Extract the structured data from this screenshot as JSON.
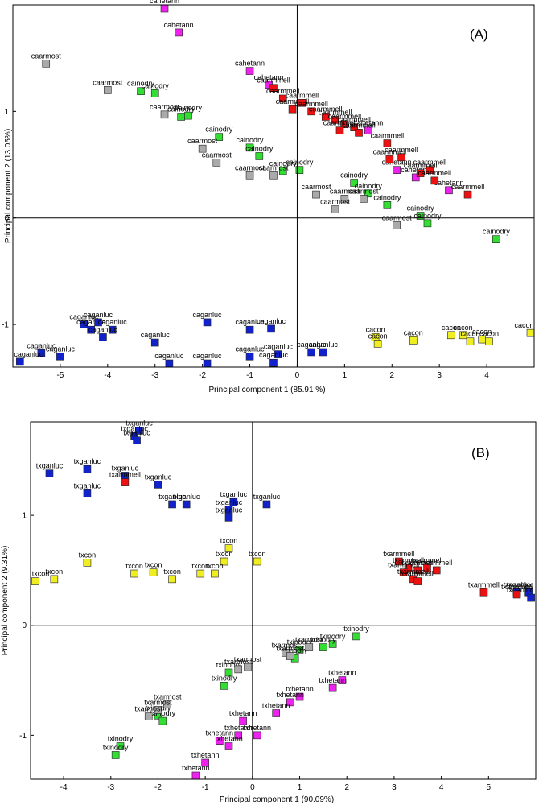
{
  "chart_data": [
    {
      "type": "scatter",
      "panel_label": "(A)",
      "xlabel": "Principal component 1 (85.91 %)",
      "ylabel": "Principal component 2 (13.05%)",
      "xlim": [
        -6,
        5
      ],
      "ylim": [
        -1.4,
        2
      ],
      "xticks": [
        -5,
        -4,
        -3,
        -2,
        -1,
        0,
        1,
        2,
        3,
        4
      ],
      "yticks": [
        -1,
        0,
        1
      ],
      "series": [
        {
          "name": "cahetann",
          "color": "#ee22ee",
          "points": [
            {
              "x": -2.8,
              "y": 1.97,
              "label": "cahetann"
            },
            {
              "x": -2.5,
              "y": 1.74,
              "label": "cahetann"
            },
            {
              "x": -1.0,
              "y": 1.38,
              "label": "cahetann"
            },
            {
              "x": -0.6,
              "y": 1.25,
              "label": "cahetann"
            },
            {
              "x": 1.5,
              "y": 0.82,
              "label": "cahetann"
            },
            {
              "x": 2.1,
              "y": 0.45,
              "label": "cahetann"
            },
            {
              "x": 2.5,
              "y": 0.38,
              "label": "cahetann"
            },
            {
              "x": 3.2,
              "y": 0.26,
              "label": "cahetann"
            }
          ]
        },
        {
          "name": "caarmmell",
          "color": "#ee1111",
          "points": [
            {
              "x": -0.5,
              "y": 1.22,
              "label": "caarmmell"
            },
            {
              "x": -0.3,
              "y": 1.12,
              "label": "caarmmell"
            },
            {
              "x": -0.1,
              "y": 1.02,
              "label": "caarmmell"
            },
            {
              "x": 0.1,
              "y": 1.08,
              "label": "caarmmell"
            },
            {
              "x": 0.3,
              "y": 1.0,
              "label": "caarmmell"
            },
            {
              "x": 0.6,
              "y": 0.95,
              "label": "caarmmell"
            },
            {
              "x": 0.8,
              "y": 0.92,
              "label": "caarmmell"
            },
            {
              "x": 1.0,
              "y": 0.88,
              "label": "caarmmell"
            },
            {
              "x": 1.2,
              "y": 0.85,
              "label": "caarmmell"
            },
            {
              "x": 0.9,
              "y": 0.82,
              "label": "caarmmell"
            },
            {
              "x": 1.3,
              "y": 0.8,
              "label": "caarmmell"
            },
            {
              "x": 1.9,
              "y": 0.7,
              "label": "caarmmell"
            },
            {
              "x": 2.2,
              "y": 0.57,
              "label": "caarmmell"
            },
            {
              "x": 1.95,
              "y": 0.55,
              "label": "caarmmell"
            },
            {
              "x": 2.8,
              "y": 0.45,
              "label": "caarmmell"
            },
            {
              "x": 2.6,
              "y": 0.42,
              "label": "caarmmell"
            },
            {
              "x": 2.9,
              "y": 0.35,
              "label": "caarmmell"
            },
            {
              "x": 3.6,
              "y": 0.22,
              "label": "caarmmell"
            }
          ]
        },
        {
          "name": "cainodry",
          "color": "#33dd33",
          "points": [
            {
              "x": -3.3,
              "y": 1.19,
              "label": "cainodry"
            },
            {
              "x": -3.0,
              "y": 1.17,
              "label": "cainodry"
            },
            {
              "x": -2.45,
              "y": 0.95,
              "label": "cainodry"
            },
            {
              "x": -2.3,
              "y": 0.96,
              "label": "cainodry"
            },
            {
              "x": -1.65,
              "y": 0.76,
              "label": "cainodry"
            },
            {
              "x": -1.0,
              "y": 0.66,
              "label": "cainodry"
            },
            {
              "x": -0.8,
              "y": 0.58,
              "label": "cainodry"
            },
            {
              "x": -0.3,
              "y": 0.44,
              "label": "cainodry"
            },
            {
              "x": 0.05,
              "y": 0.45,
              "label": "cainodry"
            },
            {
              "x": 1.2,
              "y": 0.33,
              "label": "cainodry"
            },
            {
              "x": 1.5,
              "y": 0.23,
              "label": "cainodry"
            },
            {
              "x": 1.9,
              "y": 0.12,
              "label": "cainodry"
            },
            {
              "x": 2.6,
              "y": 0.02,
              "label": "cainodry"
            },
            {
              "x": 2.75,
              "y": -0.05,
              "label": "cainodry"
            },
            {
              "x": 4.2,
              "y": -0.2,
              "label": "cainodry"
            }
          ]
        },
        {
          "name": "caarmost",
          "color": "#aaaaaa",
          "points": [
            {
              "x": -5.3,
              "y": 1.45,
              "label": "caarmost"
            },
            {
              "x": -4.0,
              "y": 1.2,
              "label": "caarmost"
            },
            {
              "x": -2.8,
              "y": 0.97,
              "label": "caarmost"
            },
            {
              "x": -2.0,
              "y": 0.65,
              "label": "caarmost"
            },
            {
              "x": -1.7,
              "y": 0.52,
              "label": "caarmost"
            },
            {
              "x": -1.0,
              "y": 0.4,
              "label": "caarmost"
            },
            {
              "x": -0.5,
              "y": 0.4,
              "label": "caarmost"
            },
            {
              "x": 0.4,
              "y": 0.22,
              "label": "caarmost"
            },
            {
              "x": 1.0,
              "y": 0.18,
              "label": "caarmost"
            },
            {
              "x": 1.4,
              "y": 0.18,
              "label": "caarmost"
            },
            {
              "x": 0.8,
              "y": 0.08,
              "label": "caarmost"
            },
            {
              "x": 2.1,
              "y": -0.07,
              "label": "caarmost"
            }
          ]
        },
        {
          "name": "caganluc",
          "color": "#1122cc",
          "points": [
            {
              "x": -4.5,
              "y": -1.0,
              "label": "caganluc"
            },
            {
              "x": -4.35,
              "y": -1.05,
              "label": "caganluc"
            },
            {
              "x": -4.2,
              "y": -0.98,
              "label": "caganluc"
            },
            {
              "x": -3.9,
              "y": -1.05,
              "label": "caganluc"
            },
            {
              "x": -4.1,
              "y": -1.12,
              "label": "caganluc"
            },
            {
              "x": -3.0,
              "y": -1.17,
              "label": "caganluc"
            },
            {
              "x": -1.9,
              "y": -0.98,
              "label": "caganluc"
            },
            {
              "x": -1.0,
              "y": -1.05,
              "label": "caganluc"
            },
            {
              "x": -0.55,
              "y": -1.04,
              "label": "caganluc"
            },
            {
              "x": -5.4,
              "y": -1.27,
              "label": "caganluc"
            },
            {
              "x": -5.0,
              "y": -1.3,
              "label": "caganluc"
            },
            {
              "x": -5.85,
              "y": -1.35,
              "label": "caganluc"
            },
            {
              "x": -2.7,
              "y": -1.37,
              "label": "caganluc"
            },
            {
              "x": -1.9,
              "y": -1.38,
              "label": "caganluc"
            },
            {
              "x": -1.0,
              "y": -1.3,
              "label": "caganluc"
            },
            {
              "x": -0.4,
              "y": -1.28,
              "label": "caganluc"
            },
            {
              "x": -0.5,
              "y": -1.36,
              "label": "caganluc"
            },
            {
              "x": 0.3,
              "y": -1.26,
              "label": "caganluc"
            },
            {
              "x": 0.55,
              "y": -1.26,
              "label": "caganluc"
            }
          ]
        },
        {
          "name": "cacon",
          "color": "#eeee22",
          "points": [
            {
              "x": 1.65,
              "y": -1.12,
              "label": "cacon"
            },
            {
              "x": 1.7,
              "y": -1.18,
              "label": "cacon"
            },
            {
              "x": 2.45,
              "y": -1.15,
              "label": "cacon"
            },
            {
              "x": 3.25,
              "y": -1.1,
              "label": "cacon"
            },
            {
              "x": 3.5,
              "y": -1.1,
              "label": "cacon"
            },
            {
              "x": 3.65,
              "y": -1.16,
              "label": "cacon"
            },
            {
              "x": 3.9,
              "y": -1.14,
              "label": "cacon"
            },
            {
              "x": 4.05,
              "y": -1.16,
              "label": "cacon"
            },
            {
              "x": 5.0,
              "y": -1.08,
              "label": "cacon"
            }
          ]
        }
      ]
    },
    {
      "type": "scatter",
      "panel_label": "(B)",
      "xlabel": "Principal component 1 (90.09%)",
      "ylabel": "Principal component 2 (9.31%)",
      "xlim": [
        -4.7,
        6
      ],
      "ylim": [
        -1.4,
        1.85
      ],
      "xticks": [
        -4,
        -3,
        -2,
        -1,
        0,
        1,
        2,
        3,
        4,
        5
      ],
      "yticks": [
        -1,
        0,
        1
      ],
      "series": [
        {
          "name": "txganluc",
          "color": "#1122cc",
          "points": [
            {
              "x": -2.4,
              "y": 1.77,
              "label": "txganluc"
            },
            {
              "x": -2.5,
              "y": 1.72,
              "label": "txganluc"
            },
            {
              "x": -2.45,
              "y": 1.68,
              "label": "txganluc"
            },
            {
              "x": -4.3,
              "y": 1.38,
              "label": "txganluc"
            },
            {
              "x": -3.5,
              "y": 1.42,
              "label": "txganluc"
            },
            {
              "x": -2.7,
              "y": 1.36,
              "label": "txganluc"
            },
            {
              "x": -2.0,
              "y": 1.28,
              "label": "txganluc"
            },
            {
              "x": -3.5,
              "y": 1.2,
              "label": "txganluc"
            },
            {
              "x": -1.7,
              "y": 1.1,
              "label": "txganluc"
            },
            {
              "x": -1.4,
              "y": 1.1,
              "label": "txganluc"
            },
            {
              "x": -0.4,
              "y": 1.12,
              "label": "txganluc"
            },
            {
              "x": -0.5,
              "y": 1.05,
              "label": "txganluc"
            },
            {
              "x": -0.5,
              "y": 0.98,
              "label": "txganluc"
            },
            {
              "x": 0.3,
              "y": 1.1,
              "label": "txganluc"
            },
            {
              "x": 5.85,
              "y": 0.3,
              "label": "txganluc"
            },
            {
              "x": 5.6,
              "y": 0.3,
              "label": "txganluc"
            },
            {
              "x": 5.9,
              "y": 0.25,
              "label": "txganluc"
            }
          ]
        },
        {
          "name": "txarmmell",
          "color": "#ee1111",
          "points": [
            {
              "x": -2.7,
              "y": 1.3,
              "label": "txarmmell"
            },
            {
              "x": 3.1,
              "y": 0.58,
              "label": "txarmmell"
            },
            {
              "x": 3.3,
              "y": 0.52,
              "label": "txarmmell"
            },
            {
              "x": 3.5,
              "y": 0.5,
              "label": "txarmmell"
            },
            {
              "x": 3.7,
              "y": 0.52,
              "label": "txarmmell"
            },
            {
              "x": 3.9,
              "y": 0.5,
              "label": "txarmmell"
            },
            {
              "x": 3.2,
              "y": 0.48,
              "label": "txarmmell"
            },
            {
              "x": 3.4,
              "y": 0.42,
              "label": "txarmmell"
            },
            {
              "x": 3.5,
              "y": 0.4,
              "label": "txarmmell"
            },
            {
              "x": 4.9,
              "y": 0.3,
              "label": "txarmmell"
            },
            {
              "x": 5.6,
              "y": 0.28,
              "label": "txarmmell"
            }
          ]
        },
        {
          "name": "txcon",
          "color": "#eeee22",
          "points": [
            {
              "x": -0.5,
              "y": 0.7,
              "label": "txcon"
            },
            {
              "x": -0.6,
              "y": 0.58,
              "label": "txcon"
            },
            {
              "x": 0.1,
              "y": 0.58,
              "label": "txcon"
            },
            {
              "x": -3.5,
              "y": 0.57,
              "label": "txcon"
            },
            {
              "x": -2.5,
              "y": 0.47,
              "label": "txcon"
            },
            {
              "x": -2.1,
              "y": 0.48,
              "label": "txcon"
            },
            {
              "x": -1.1,
              "y": 0.47,
              "label": "txcon"
            },
            {
              "x": -0.8,
              "y": 0.47,
              "label": "txcon"
            },
            {
              "x": -4.2,
              "y": 0.42,
              "label": "txcon"
            },
            {
              "x": -4.6,
              "y": 0.4,
              "label": "txcon"
            },
            {
              "x": -1.7,
              "y": 0.42,
              "label": "txcon"
            }
          ]
        },
        {
          "name": "txinodry",
          "color": "#33dd33",
          "points": [
            {
              "x": 2.2,
              "y": -0.1,
              "label": "txinodry"
            },
            {
              "x": 1.7,
              "y": -0.17,
              "label": "txinodry"
            },
            {
              "x": 1.5,
              "y": -0.2,
              "label": "txinodry"
            },
            {
              "x": 1.0,
              "y": -0.22,
              "label": "txinodry"
            },
            {
              "x": 0.9,
              "y": -0.3,
              "label": "txinodry"
            },
            {
              "x": -0.5,
              "y": -0.43,
              "label": "txinodry"
            },
            {
              "x": -0.6,
              "y": -0.55,
              "label": "txinodry"
            },
            {
              "x": -2.0,
              "y": -0.82,
              "label": "txinodry"
            },
            {
              "x": -1.9,
              "y": -0.87,
              "label": "txinodry"
            },
            {
              "x": -2.8,
              "y": -1.1,
              "label": "txinodry"
            },
            {
              "x": -2.9,
              "y": -1.18,
              "label": "txinodry"
            }
          ]
        },
        {
          "name": "txarmost",
          "color": "#aaaaaa",
          "points": [
            {
              "x": 0.7,
              "y": -0.25,
              "label": "txarmost"
            },
            {
              "x": 1.2,
              "y": -0.2,
              "label": "txarmost"
            },
            {
              "x": 0.8,
              "y": -0.28,
              "label": "txarmost"
            },
            {
              "x": -0.3,
              "y": -0.4,
              "label": "txarmost"
            },
            {
              "x": -0.1,
              "y": -0.38,
              "label": "txarmost"
            },
            {
              "x": -1.8,
              "y": -0.72,
              "label": "txarmost"
            },
            {
              "x": -2.0,
              "y": -0.77,
              "label": "txarmost"
            },
            {
              "x": -2.2,
              "y": -0.83,
              "label": "txarmost"
            }
          ]
        },
        {
          "name": "txhetann",
          "color": "#ee22ee",
          "points": [
            {
              "x": 1.9,
              "y": -0.5,
              "label": "txhetann"
            },
            {
              "x": 1.7,
              "y": -0.57,
              "label": "txhetann"
            },
            {
              "x": 1.0,
              "y": -0.65,
              "label": "txhetann"
            },
            {
              "x": 0.8,
              "y": -0.7,
              "label": "txhetann"
            },
            {
              "x": 0.5,
              "y": -0.8,
              "label": "txhetann"
            },
            {
              "x": -0.2,
              "y": -0.87,
              "label": "txhetann"
            },
            {
              "x": -0.3,
              "y": -1.0,
              "label": "txhetann"
            },
            {
              "x": 0.1,
              "y": -1.0,
              "label": "txhetann"
            },
            {
              "x": -0.7,
              "y": -1.05,
              "label": "txhetann"
            },
            {
              "x": -0.5,
              "y": -1.1,
              "label": "txhetann"
            },
            {
              "x": -1.0,
              "y": -1.25,
              "label": "txhetann"
            },
            {
              "x": -1.2,
              "y": -1.38,
              "label": "txhetann"
            }
          ]
        }
      ]
    }
  ]
}
